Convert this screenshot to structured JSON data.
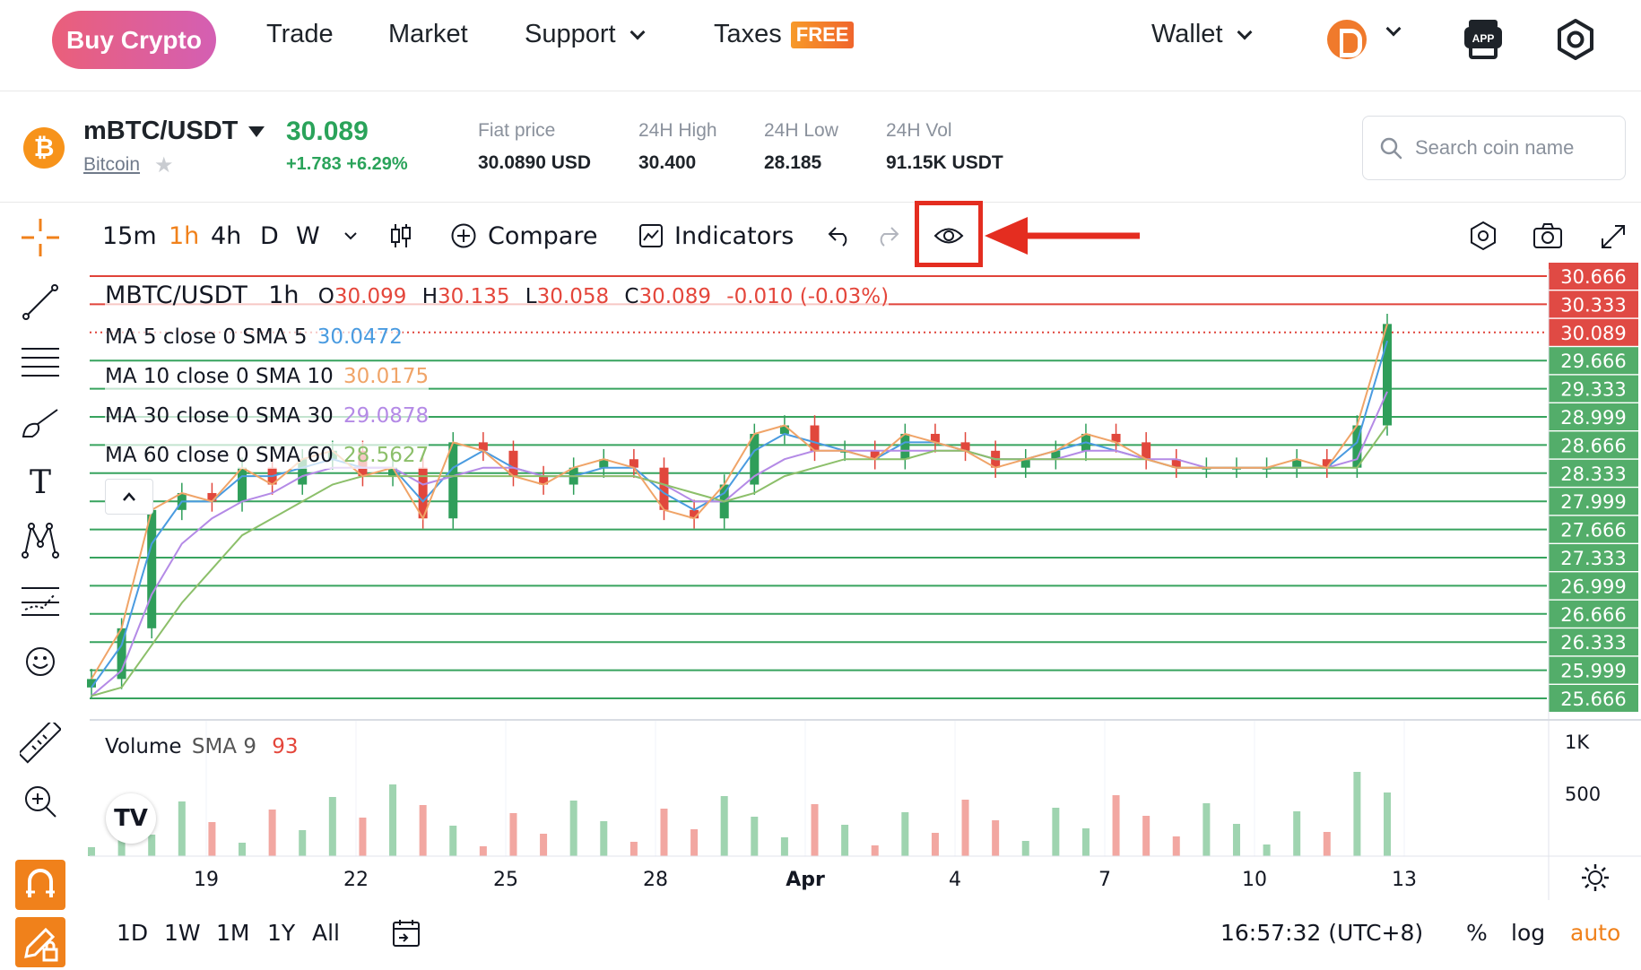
{
  "nav": {
    "buy_crypto": "Buy Crypto",
    "trade": "Trade",
    "market": "Market",
    "support": "Support",
    "taxes": "Taxes",
    "taxes_badge": "FREE",
    "wallet": "Wallet",
    "app_badge": "APP"
  },
  "coin": {
    "pair": "mBTC/USDT",
    "name": "Bitcoin",
    "logo_symbol": "₿",
    "price": "30.089",
    "change": "+1.783 +6.29%",
    "stats": [
      {
        "label": "Fiat price",
        "value": "30.0890 USD"
      },
      {
        "label": "24H High",
        "value": "30.400"
      },
      {
        "label": "24H Low",
        "value": "28.185"
      },
      {
        "label": "24H Vol",
        "value": "91.15K USDT"
      }
    ],
    "search_placeholder": "Search coin name"
  },
  "toolbar": {
    "intervals": [
      "15m",
      "1h",
      "4h",
      "D",
      "W"
    ],
    "active_interval": "1h",
    "compare": "Compare",
    "indicators": "Indicators"
  },
  "legend": {
    "symbol": "MBTC/USDT",
    "interval": "1h",
    "o_label": "O",
    "o": "30.099",
    "h_label": "H",
    "h": "30.135",
    "l_label": "L",
    "l": "30.058",
    "c_label": "C",
    "c": "30.089",
    "change": "-0.010 (-0.03%)",
    "ma": [
      {
        "label": "MA 5 close 0 SMA 5",
        "value": "30.0472",
        "color": "#4a9be0"
      },
      {
        "label": "MA 10 close 0 SMA 10",
        "value": "30.0175",
        "color": "#f0a468"
      },
      {
        "label": "MA 30 close 0 SMA 30",
        "value": "29.0878",
        "color": "#b48ae6"
      },
      {
        "label": "MA 60 close 0 SMA 60",
        "value": "28.5627",
        "color": "#8cbf6a"
      }
    ],
    "volume_label": "Volume",
    "volume_sma": "SMA 9",
    "volume_value": "93"
  },
  "chart_data": {
    "type": "line",
    "price_axis_labels": [
      "30.666",
      "30.333",
      "30.089",
      "29.666",
      "29.333",
      "28.999",
      "28.666",
      "28.333",
      "27.999",
      "27.666",
      "27.333",
      "26.999",
      "26.666",
      "26.333",
      "25.999",
      "25.666"
    ],
    "price_axis_colors": [
      "red",
      "red",
      "red",
      "green",
      "green",
      "green",
      "green",
      "green",
      "green",
      "green",
      "green",
      "green",
      "green",
      "green",
      "green",
      "green"
    ],
    "ylim": [
      25.5,
      30.8
    ],
    "x_tick_labels": [
      "19",
      "22",
      "25",
      "28",
      "Apr",
      "4",
      "7",
      "10",
      "13"
    ],
    "volume_axis_labels": [
      "1K",
      "500"
    ],
    "series": [
      {
        "name": "",
        "values": [
          25.9,
          26.5,
          27.9,
          28.1,
          28.0,
          28.4,
          28.2,
          28.5,
          28.6,
          28.3,
          28.4,
          27.8,
          28.7,
          28.6,
          28.3,
          28.2,
          28.4,
          28.5,
          28.4,
          27.9,
          27.8,
          28.2,
          28.8,
          28.9,
          28.6,
          28.6,
          28.5,
          28.8,
          28.7,
          28.6,
          28.4,
          28.5,
          28.6,
          28.8,
          28.7,
          28.5,
          28.4,
          28.4,
          28.4,
          28.4,
          28.5,
          28.4,
          28.9,
          30.1
        ]
      },
      {
        "name": "MA 5 close 0 SMA 5",
        "values": [
          25.8,
          26.3,
          27.5,
          28.0,
          28.0,
          28.3,
          28.3,
          28.4,
          28.5,
          28.4,
          28.4,
          28.0,
          28.4,
          28.6,
          28.4,
          28.3,
          28.3,
          28.4,
          28.4,
          28.1,
          27.9,
          28.1,
          28.6,
          28.8,
          28.7,
          28.6,
          28.5,
          28.7,
          28.7,
          28.6,
          28.5,
          28.5,
          28.6,
          28.7,
          28.6,
          28.5,
          28.4,
          28.4,
          28.4,
          28.4,
          28.4,
          28.4,
          28.7,
          29.9
        ]
      },
      {
        "name": "MA 30 close 0 SMA 30",
        "values": [
          25.7,
          26.0,
          26.9,
          27.5,
          27.8,
          28.0,
          28.1,
          28.3,
          28.4,
          28.4,
          28.4,
          28.2,
          28.3,
          28.4,
          28.4,
          28.3,
          28.3,
          28.3,
          28.3,
          28.2,
          28.0,
          28.0,
          28.3,
          28.5,
          28.6,
          28.6,
          28.6,
          28.6,
          28.6,
          28.6,
          28.5,
          28.5,
          28.5,
          28.6,
          28.6,
          28.5,
          28.5,
          28.4,
          28.4,
          28.4,
          28.4,
          28.4,
          28.5,
          29.3
        ]
      },
      {
        "name": "MA 60 close 0 SMA 60",
        "values": [
          25.7,
          25.8,
          26.3,
          26.8,
          27.2,
          27.6,
          27.8,
          28.0,
          28.2,
          28.3,
          28.3,
          28.3,
          28.3,
          28.3,
          28.3,
          28.3,
          28.3,
          28.3,
          28.3,
          28.2,
          28.1,
          28.0,
          28.1,
          28.3,
          28.4,
          28.5,
          28.5,
          28.5,
          28.6,
          28.6,
          28.5,
          28.5,
          28.5,
          28.5,
          28.5,
          28.5,
          28.4,
          28.4,
          28.4,
          28.4,
          28.4,
          28.4,
          28.4,
          28.9
        ]
      }
    ]
  },
  "bottom": {
    "ranges": [
      "1D",
      "1W",
      "1M",
      "1Y",
      "All"
    ],
    "time": "16:57:32 (UTC+8)",
    "percent": "%",
    "log": "log",
    "auto": "auto"
  }
}
